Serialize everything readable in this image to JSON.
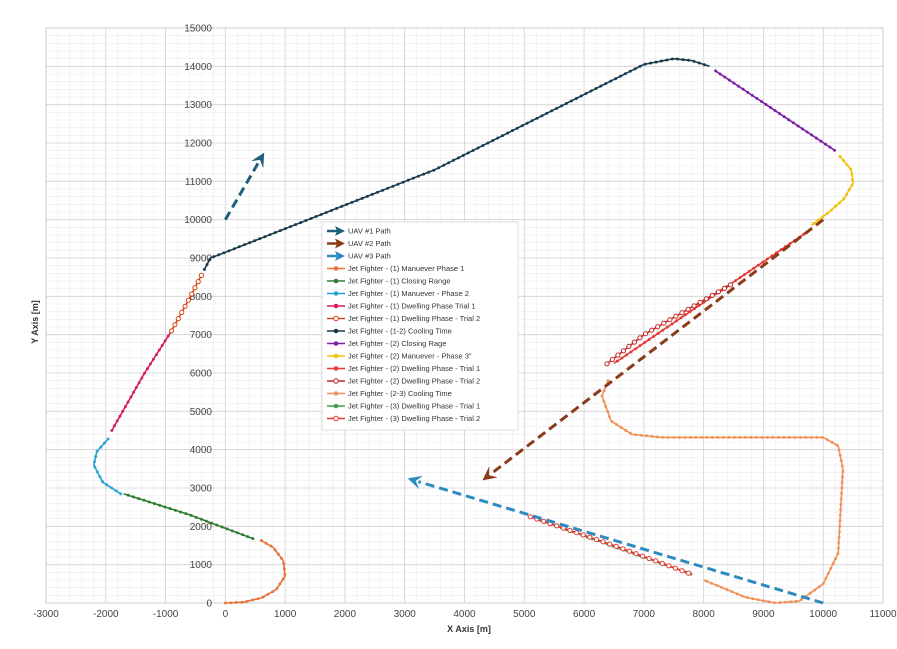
{
  "chart_data": {
    "type": "scatter",
    "title": "",
    "xlabel": "X Axis [m]",
    "ylabel": "Y Axis [m]",
    "xlim": [
      -3000,
      11000
    ],
    "ylim": [
      0,
      15000
    ],
    "x_ticks": [
      -3000,
      -2000,
      -1000,
      0,
      1000,
      2000,
      3000,
      4000,
      5000,
      6000,
      7000,
      8000,
      9000,
      10000,
      11000
    ],
    "x_tick_labels": [
      "-3000",
      "-2000",
      "-1000",
      "0",
      "1000",
      "2000",
      "3000",
      "4000",
      "5000",
      "6000",
      "7000",
      "8000",
      "9000",
      "10000",
      "11000"
    ],
    "y_ticks": [
      0,
      1000,
      2000,
      3000,
      4000,
      5000,
      6000,
      7000,
      8000,
      9000,
      10000,
      11000,
      12000,
      13000,
      14000,
      15000
    ],
    "y_tick_labels": [
      "0",
      "1000",
      "2000",
      "3000",
      "4000",
      "5000",
      "6000",
      "7000",
      "8000",
      "9000",
      "10000",
      "11000",
      "12000",
      "13000",
      "14000",
      "15000"
    ],
    "grid": true,
    "legend_position": "center",
    "arrows": [
      {
        "name": "UAV #1 Path",
        "color": "#1f5f7a",
        "from": [
          0,
          10000
        ],
        "to": [
          650,
          11750
        ]
      },
      {
        "name": "UAV #2 Path",
        "color": "#8b3a1a",
        "from": [
          10000,
          10000
        ],
        "to": [
          4300,
          3200
        ]
      },
      {
        "name": "UAV #3 Path",
        "color": "#2e8bc0",
        "from": [
          10000,
          0
        ],
        "to": [
          3050,
          3250
        ]
      }
    ],
    "series": [
      {
        "name": "Jet Fighter - (1) Manuever Phase 1",
        "color": "#e8743b",
        "marker": "line",
        "points": [
          [
            0,
            0
          ],
          [
            300,
            20
          ],
          [
            600,
            130
          ],
          [
            850,
            350
          ],
          [
            1000,
            700
          ],
          [
            970,
            1100
          ],
          [
            800,
            1450
          ],
          [
            580,
            1650
          ]
        ]
      },
      {
        "name": "Jet Fighter - (1) Closing Range",
        "color": "#2e7d32",
        "marker": "line",
        "points": [
          [
            460,
            1680
          ],
          [
            -600,
            2300
          ],
          [
            -1700,
            2850
          ]
        ]
      },
      {
        "name": "Jet Fighter - (1) Manuever - Phase 2",
        "color": "#29a3d6",
        "marker": "line",
        "points": [
          [
            -1750,
            2850
          ],
          [
            -2050,
            3150
          ],
          [
            -2200,
            3600
          ],
          [
            -2150,
            3950
          ],
          [
            -1950,
            4300
          ]
        ]
      },
      {
        "name": "Jet Fighter - (1) Dwelling Phase Trial 1",
        "color": "#d81b60",
        "marker": "line",
        "points": [
          [
            -1900,
            4500
          ],
          [
            -1350,
            6000
          ],
          [
            -900,
            7100
          ]
        ]
      },
      {
        "name": "Jet Fighter - (1) Dwelling Phase - Trial 2",
        "color": "#d84315",
        "marker": "circle",
        "points": [
          [
            -900,
            7100
          ],
          [
            -600,
            7950
          ],
          [
            -400,
            8550
          ]
        ]
      },
      {
        "name": "Jet Fighter - (1-2) Cooling Time",
        "color": "#1b3a4b",
        "marker": "line",
        "points": [
          [
            -350,
            8700
          ],
          [
            -250,
            9000
          ],
          [
            0,
            9150
          ],
          [
            3500,
            11300
          ],
          [
            7000,
            14050
          ],
          [
            7500,
            14200
          ],
          [
            7800,
            14150
          ],
          [
            8100,
            14000
          ]
        ]
      },
      {
        "name": "Jet Fighter - (2) Closing Rage",
        "color": "#7b1fa2",
        "marker": "line",
        "points": [
          [
            8200,
            13880
          ],
          [
            10200,
            11800
          ]
        ]
      },
      {
        "name": "Jet Fighter - (2) Manuever - Phase 3\"",
        "color": "#f2c10f",
        "marker": "line",
        "points": [
          [
            10280,
            11650
          ],
          [
            10470,
            11300
          ],
          [
            10500,
            10950
          ],
          [
            10350,
            10550
          ],
          [
            10100,
            10200
          ],
          [
            9800,
            9850
          ]
        ]
      },
      {
        "name": "Jet Fighter - (2) Dwelling Phase - Trial 1",
        "color": "#e53935",
        "marker": "line",
        "points": [
          [
            9750,
            9700
          ],
          [
            6500,
            6250
          ]
        ]
      },
      {
        "name": "Jet Fighter - (2) Dwelling Phase - Trial 2",
        "color": "#c62828",
        "marker": "circle",
        "points": [
          [
            8450,
            8300
          ],
          [
            7000,
            7000
          ],
          [
            6350,
            6200
          ]
        ]
      },
      {
        "name": "Jet Fighter - (2-3) Cooling Time",
        "color": "#f0925a",
        "marker": "line",
        "points": [
          [
            6400,
            5800
          ],
          [
            6300,
            5400
          ],
          [
            6450,
            4750
          ],
          [
            6800,
            4400
          ],
          [
            7300,
            4320
          ],
          [
            10000,
            4320
          ],
          [
            10250,
            4100
          ],
          [
            10330,
            3500
          ],
          [
            10250,
            1300
          ],
          [
            10000,
            500
          ],
          [
            9600,
            50
          ],
          [
            9200,
            0
          ],
          [
            8700,
            150
          ],
          [
            8000,
            600
          ]
        ]
      },
      {
        "name": "Jet Fighter - (3) Dwelling Phase - Trial 1",
        "color": "#43a047",
        "marker": "line",
        "points": [
          [
            5100,
            2250
          ],
          [
            7800,
            750
          ]
        ]
      },
      {
        "name": "Jet Fighter - (3) Dwelling Phase - Trial 2",
        "color": "#e53935",
        "marker": "circle",
        "points": [
          [
            5100,
            2250
          ],
          [
            6500,
            1500
          ],
          [
            7800,
            750
          ]
        ]
      }
    ]
  }
}
